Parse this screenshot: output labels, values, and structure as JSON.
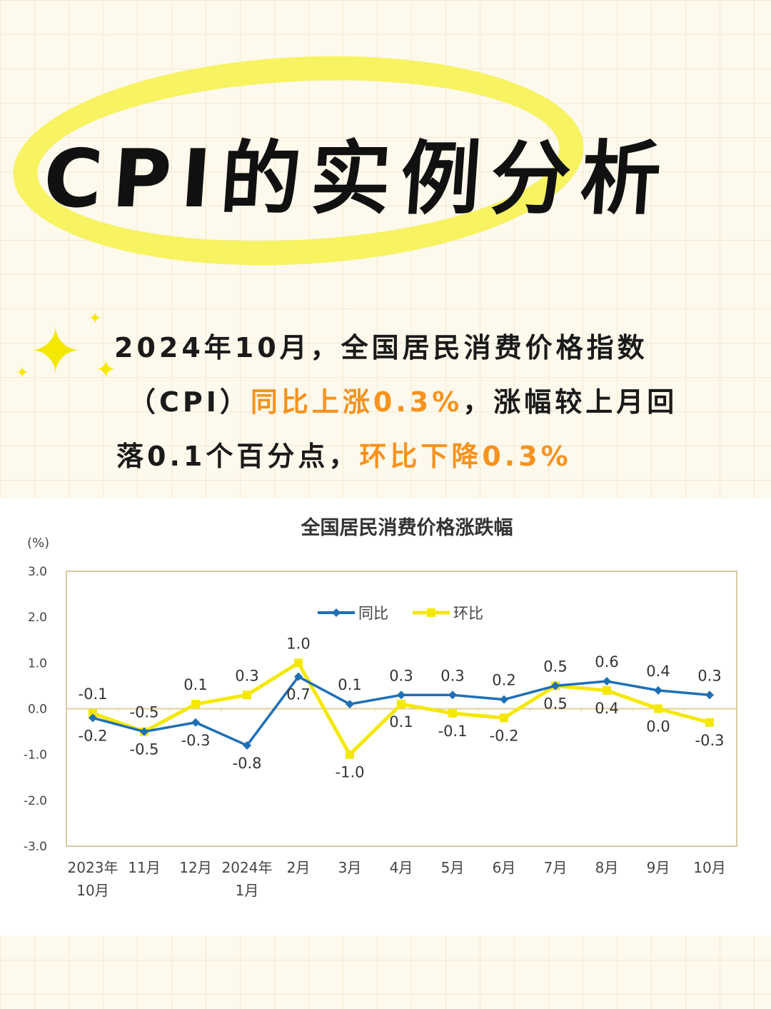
{
  "header": {
    "title": "CPI的实例分析"
  },
  "summary": {
    "line1": "2024年10月，全国居民消费价格指数",
    "line2_a": "（CPI）",
    "line2_b": "同比上涨0.3%",
    "line2_c": "，涨幅较上月回",
    "line3_a": "落0.1个百分点，",
    "line3_b": "环比下降0.3%"
  },
  "colors": {
    "highlight": "#f7921e",
    "yoy": "#1f6fb5",
    "mom": "#f5e800",
    "frame": "#d9c9a0"
  },
  "chart_data": {
    "type": "line",
    "title": "全国居民消费价格涨跌幅",
    "ylabel": "(%)",
    "ylim": [
      -3.0,
      3.0
    ],
    "yticks": [
      "3.0",
      "2.0",
      "1.0",
      "0.0",
      "-1.0",
      "-2.0",
      "-3.0"
    ],
    "categories": [
      "2023年\n10月",
      "11月",
      "12月",
      "2024年\n1月",
      "2月",
      "3月",
      "4月",
      "5月",
      "6月",
      "7月",
      "8月",
      "9月",
      "10月"
    ],
    "legend": "top-center",
    "series": [
      {
        "name": "同比",
        "values": [
          -0.2,
          -0.5,
          -0.3,
          -0.8,
          0.7,
          0.1,
          0.3,
          0.3,
          0.2,
          0.5,
          0.6,
          0.4,
          0.3
        ]
      },
      {
        "name": "环比",
        "values": [
          -0.1,
          -0.5,
          0.1,
          0.3,
          1.0,
          -1.0,
          0.1,
          -0.1,
          -0.2,
          0.5,
          0.4,
          0.0,
          -0.3
        ]
      }
    ]
  }
}
